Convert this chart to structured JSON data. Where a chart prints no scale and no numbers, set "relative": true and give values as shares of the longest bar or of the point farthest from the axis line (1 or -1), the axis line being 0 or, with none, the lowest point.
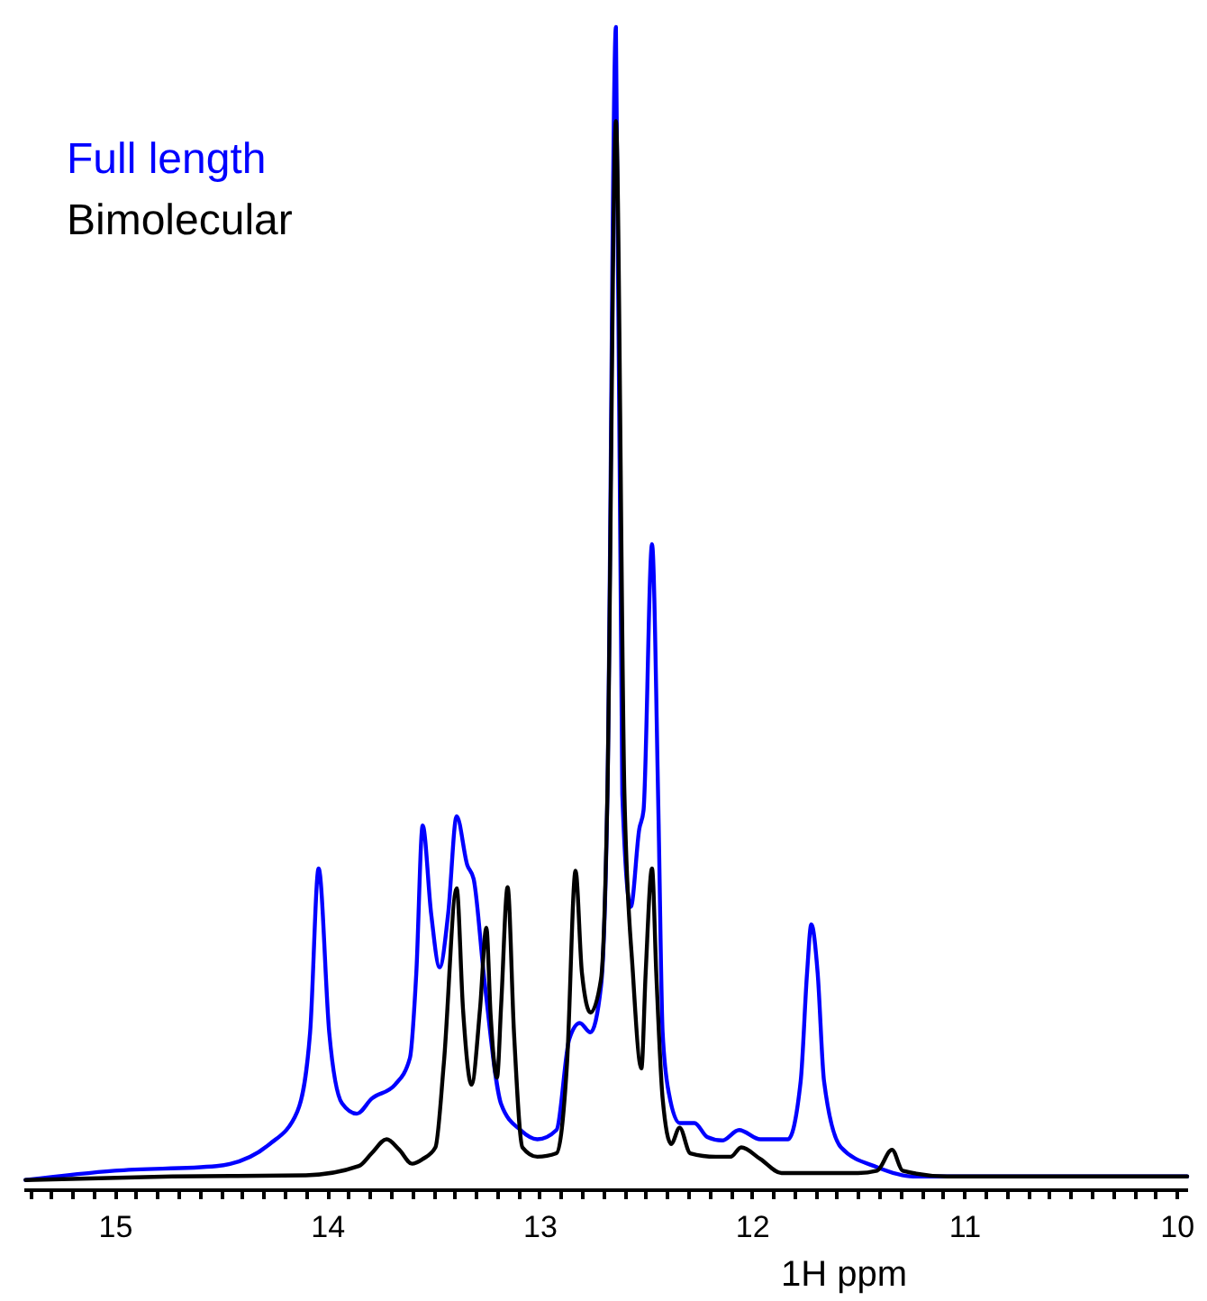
{
  "chart_data": {
    "type": "line",
    "relative": true,
    "xlabel": "1H ppm",
    "xlim": [
      15.43,
      9.95
    ],
    "legend": "top left",
    "grid": false,
    "xticks": [
      {
        "value": 15.4,
        "label": null
      },
      {
        "value": 15.3,
        "label": null
      },
      {
        "value": 15.2,
        "label": null
      },
      {
        "value": 15.1,
        "label": null
      },
      15,
      {
        "value": 14.9,
        "label": null
      },
      {
        "value": 14.8,
        "label": null
      },
      {
        "value": 14.7,
        "label": null
      },
      {
        "value": 14.6,
        "label": null
      },
      {
        "value": 14.5,
        "label": null
      },
      {
        "value": 14.4,
        "label": null
      },
      {
        "value": 14.3,
        "label": null
      },
      {
        "value": 14.2,
        "label": null
      },
      {
        "value": 14.1,
        "label": null
      },
      14,
      {
        "value": 13.9,
        "label": null
      },
      {
        "value": 13.8,
        "label": null
      },
      {
        "value": 13.7,
        "label": null
      },
      {
        "value": 13.6,
        "label": null
      },
      {
        "value": 13.5,
        "label": null
      },
      {
        "value": 13.4,
        "label": null
      },
      {
        "value": 13.3,
        "label": null
      },
      {
        "value": 13.2,
        "label": null
      },
      {
        "value": 13.1,
        "label": null
      },
      13,
      {
        "value": 12.9,
        "label": null
      },
      {
        "value": 12.8,
        "label": null
      },
      {
        "value": 12.7,
        "label": null
      },
      {
        "value": 12.6,
        "label": null
      },
      {
        "value": 12.5,
        "label": null
      },
      {
        "value": 12.4,
        "label": null
      },
      {
        "value": 12.3,
        "label": null
      },
      {
        "value": 12.2,
        "label": null
      },
      {
        "value": 12.1,
        "label": null
      },
      12,
      {
        "value": 11.9,
        "label": null
      },
      {
        "value": 11.8,
        "label": null
      },
      {
        "value": 11.7,
        "label": null
      },
      {
        "value": 11.6,
        "label": null
      },
      {
        "value": 11.5,
        "label": null
      },
      {
        "value": 11.4,
        "label": null
      },
      {
        "value": 11.3,
        "label": null
      },
      {
        "value": 11.2,
        "label": null
      },
      {
        "value": 11.1,
        "label": null
      },
      11,
      {
        "value": 10.9,
        "label": null
      },
      {
        "value": 10.8,
        "label": null
      },
      {
        "value": 10.7,
        "label": null
      },
      {
        "value": 10.6,
        "label": null
      },
      {
        "value": 10.5,
        "label": null
      },
      {
        "value": 10.4,
        "label": null
      },
      {
        "value": 10.3,
        "label": null
      },
      {
        "value": 10.2,
        "label": null
      },
      {
        "value": 10.1,
        "label": null
      },
      10
    ],
    "series": [
      {
        "name": "Full length",
        "color": "#0000ff",
        "x": [
          15.42,
          15.0,
          14.52,
          14.27,
          14.14,
          14.08,
          14.04,
          13.99,
          13.93,
          13.86,
          13.79,
          13.68,
          13.61,
          13.58,
          13.55,
          13.51,
          13.47,
          13.43,
          13.39,
          13.34,
          13.31,
          13.26,
          13.18,
          13.09,
          13.01,
          12.92,
          12.86,
          12.81,
          12.76,
          12.71,
          12.68,
          12.64,
          12.61,
          12.57,
          12.53,
          12.51,
          12.47,
          12.44,
          12.42,
          12.39,
          12.34,
          12.27,
          12.21,
          12.14,
          12.06,
          11.96,
          11.83,
          11.77,
          11.74,
          11.72,
          11.69,
          11.66,
          11.58,
          11.41,
          11.24,
          10.82,
          9.95
        ],
        "values": [
          0.008,
          0.016,
          0.02,
          0.039,
          0.067,
          0.135,
          0.276,
          0.135,
          0.074,
          0.065,
          0.078,
          0.09,
          0.113,
          0.186,
          0.313,
          0.237,
          0.191,
          0.237,
          0.321,
          0.279,
          0.267,
          0.181,
          0.073,
          0.051,
          0.043,
          0.051,
          0.129,
          0.143,
          0.135,
          0.175,
          0.34,
          1.0,
          0.34,
          0.243,
          0.31,
          0.326,
          0.555,
          0.326,
          0.135,
          0.082,
          0.057,
          0.057,
          0.045,
          0.042,
          0.051,
          0.043,
          0.043,
          0.093,
          0.186,
          0.228,
          0.186,
          0.093,
          0.036,
          0.019,
          0.011,
          0.011,
          0.011
        ]
      },
      {
        "name": "Bimolecular",
        "color": "#000000",
        "x": [
          15.42,
          14.73,
          14.1,
          13.85,
          13.79,
          13.72,
          13.66,
          13.6,
          13.55,
          13.49,
          13.45,
          13.39,
          13.36,
          13.32,
          13.28,
          13.25,
          13.23,
          13.2,
          13.18,
          13.15,
          13.12,
          13.08,
          13.01,
          12.92,
          12.87,
          12.83,
          12.8,
          12.76,
          12.71,
          12.68,
          12.64,
          12.6,
          12.56,
          12.52,
          12.5,
          12.47,
          12.45,
          12.42,
          12.38,
          12.34,
          12.29,
          12.17,
          12.1,
          12.05,
          11.96,
          11.86,
          11.5,
          11.41,
          11.34,
          11.29,
          11.08,
          9.95
        ],
        "values": [
          0.008,
          0.011,
          0.012,
          0.02,
          0.031,
          0.043,
          0.034,
          0.022,
          0.026,
          0.036,
          0.109,
          0.259,
          0.155,
          0.09,
          0.155,
          0.225,
          0.15,
          0.096,
          0.16,
          0.26,
          0.135,
          0.036,
          0.028,
          0.031,
          0.109,
          0.274,
          0.186,
          0.152,
          0.181,
          0.341,
          0.919,
          0.341,
          0.186,
          0.104,
          0.186,
          0.276,
          0.186,
          0.078,
          0.039,
          0.053,
          0.031,
          0.028,
          0.028,
          0.036,
          0.026,
          0.014,
          0.014,
          0.016,
          0.034,
          0.016,
          0.011,
          0.011
        ]
      }
    ]
  }
}
